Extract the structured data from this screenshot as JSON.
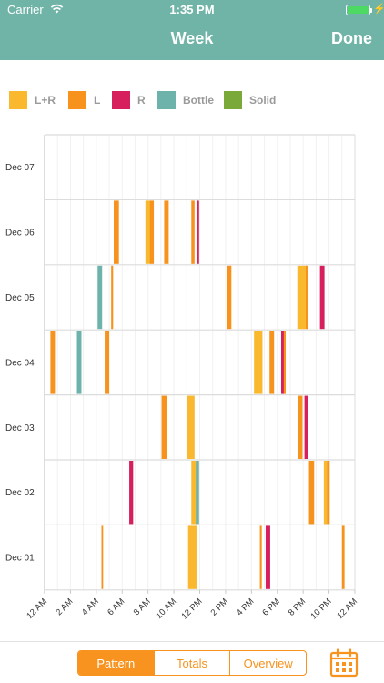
{
  "status": {
    "carrier": "Carrier",
    "time": "1:35 PM"
  },
  "nav": {
    "title": "Week",
    "done_label": "Done"
  },
  "legend": [
    {
      "label": "L+R",
      "color": "#f9b82e"
    },
    {
      "label": "L",
      "color": "#f7921c"
    },
    {
      "label": "R",
      "color": "#d61f5c"
    },
    {
      "label": "Bottle",
      "color": "#6db3ab"
    },
    {
      "label": "Solid",
      "color": "#7aa839"
    }
  ],
  "chart_data": {
    "type": "timeline",
    "days": [
      "Dec 07",
      "Dec 06",
      "Dec 05",
      "Dec 04",
      "Dec 03",
      "Dec 02",
      "Dec 01"
    ],
    "x_ticks": [
      "12 AM",
      "2 AM",
      "4 AM",
      "6 AM",
      "8 AM",
      "10 AM",
      "12 PM",
      "2 PM",
      "4 PM",
      "6 PM",
      "8 PM",
      "10 PM",
      "12 AM"
    ],
    "x_range_hours": [
      0,
      24
    ],
    "events": [
      {
        "day": "Dec 06",
        "type": "L",
        "start": 5.35,
        "end": 5.75
      },
      {
        "day": "Dec 06",
        "type": "L+R",
        "start": 7.8,
        "end": 8.2
      },
      {
        "day": "Dec 06",
        "type": "L",
        "start": 8.15,
        "end": 8.45
      },
      {
        "day": "Dec 06",
        "type": "L",
        "start": 9.25,
        "end": 9.6
      },
      {
        "day": "Dec 06",
        "type": "L",
        "start": 11.35,
        "end": 11.6
      },
      {
        "day": "Dec 06",
        "type": "R",
        "start": 11.8,
        "end": 11.95
      },
      {
        "day": "Dec 05",
        "type": "Bottle",
        "start": 4.1,
        "end": 4.45
      },
      {
        "day": "Dec 05",
        "type": "L",
        "start": 5.15,
        "end": 5.3
      },
      {
        "day": "Dec 05",
        "type": "L",
        "start": 14.1,
        "end": 14.45
      },
      {
        "day": "Dec 05",
        "type": "L+R",
        "start": 19.55,
        "end": 20.25
      },
      {
        "day": "Dec 05",
        "type": "L",
        "start": 20.2,
        "end": 20.4
      },
      {
        "day": "Dec 05",
        "type": "R",
        "start": 21.3,
        "end": 21.65
      },
      {
        "day": "Dec 04",
        "type": "L",
        "start": 0.45,
        "end": 0.8
      },
      {
        "day": "Dec 04",
        "type": "Bottle",
        "start": 2.5,
        "end": 2.85
      },
      {
        "day": "Dec 04",
        "type": "L",
        "start": 4.65,
        "end": 5.0
      },
      {
        "day": "Dec 04",
        "type": "L+R",
        "start": 16.2,
        "end": 16.85
      },
      {
        "day": "Dec 04",
        "type": "L",
        "start": 17.4,
        "end": 17.75
      },
      {
        "day": "Dec 04",
        "type": "R",
        "start": 18.3,
        "end": 18.55
      },
      {
        "day": "Dec 04",
        "type": "L",
        "start": 18.5,
        "end": 18.65
      },
      {
        "day": "Dec 03",
        "type": "L",
        "start": 9.05,
        "end": 9.45
      },
      {
        "day": "Dec 03",
        "type": "L+R",
        "start": 11.0,
        "end": 11.6
      },
      {
        "day": "Dec 03",
        "type": "L",
        "start": 19.6,
        "end": 19.95
      },
      {
        "day": "Dec 03",
        "type": "R",
        "start": 20.1,
        "end": 20.4
      },
      {
        "day": "Dec 02",
        "type": "R",
        "start": 6.55,
        "end": 6.85
      },
      {
        "day": "Dec 02",
        "type": "L+R",
        "start": 11.35,
        "end": 11.75
      },
      {
        "day": "Dec 02",
        "type": "Bottle",
        "start": 11.7,
        "end": 11.95
      },
      {
        "day": "Dec 02",
        "type": "L",
        "start": 20.45,
        "end": 20.85
      },
      {
        "day": "Dec 02",
        "type": "L+R",
        "start": 21.6,
        "end": 21.85
      },
      {
        "day": "Dec 02",
        "type": "L",
        "start": 21.85,
        "end": 22.05
      },
      {
        "day": "Dec 01",
        "type": "L",
        "start": 4.4,
        "end": 4.5
      },
      {
        "day": "Dec 01",
        "type": "L+R",
        "start": 11.1,
        "end": 11.75
      },
      {
        "day": "Dec 01",
        "type": "L",
        "start": 16.65,
        "end": 16.8
      },
      {
        "day": "Dec 01",
        "type": "R",
        "start": 17.1,
        "end": 17.45
      },
      {
        "day": "Dec 01",
        "type": "L",
        "start": 23.0,
        "end": 23.2
      }
    ]
  },
  "bottom": {
    "tabs": [
      "Pattern",
      "Totals",
      "Overview"
    ],
    "active_tab": "Pattern"
  }
}
